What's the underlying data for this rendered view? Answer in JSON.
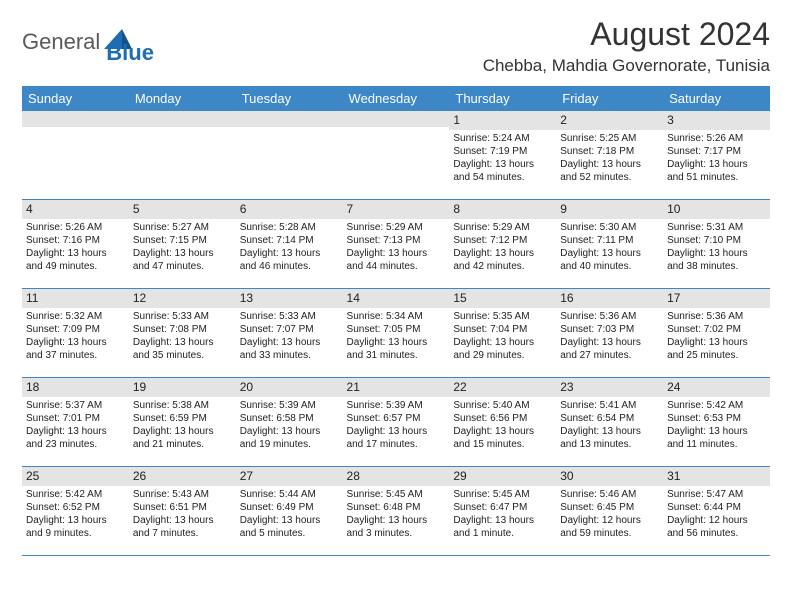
{
  "brand": {
    "general": "General",
    "blue": "Blue",
    "accent": "#1e6db2",
    "accent_dark": "#14518a"
  },
  "header": {
    "month_title": "August 2024",
    "location": "Chebba, Mahdia Governorate, Tunisia"
  },
  "colors": {
    "header_bg": "#3d87c7",
    "daynum_bg": "#e4e4e4",
    "rule": "#3d87c7"
  },
  "weekdays": [
    "Sunday",
    "Monday",
    "Tuesday",
    "Wednesday",
    "Thursday",
    "Friday",
    "Saturday"
  ],
  "calendar": {
    "first_weekday_index": 4,
    "num_days": 31,
    "days": [
      {
        "n": 1,
        "sunrise": "5:24 AM",
        "sunset": "7:19 PM",
        "daylight": "13 hours and 54 minutes."
      },
      {
        "n": 2,
        "sunrise": "5:25 AM",
        "sunset": "7:18 PM",
        "daylight": "13 hours and 52 minutes."
      },
      {
        "n": 3,
        "sunrise": "5:26 AM",
        "sunset": "7:17 PM",
        "daylight": "13 hours and 51 minutes."
      },
      {
        "n": 4,
        "sunrise": "5:26 AM",
        "sunset": "7:16 PM",
        "daylight": "13 hours and 49 minutes."
      },
      {
        "n": 5,
        "sunrise": "5:27 AM",
        "sunset": "7:15 PM",
        "daylight": "13 hours and 47 minutes."
      },
      {
        "n": 6,
        "sunrise": "5:28 AM",
        "sunset": "7:14 PM",
        "daylight": "13 hours and 46 minutes."
      },
      {
        "n": 7,
        "sunrise": "5:29 AM",
        "sunset": "7:13 PM",
        "daylight": "13 hours and 44 minutes."
      },
      {
        "n": 8,
        "sunrise": "5:29 AM",
        "sunset": "7:12 PM",
        "daylight": "13 hours and 42 minutes."
      },
      {
        "n": 9,
        "sunrise": "5:30 AM",
        "sunset": "7:11 PM",
        "daylight": "13 hours and 40 minutes."
      },
      {
        "n": 10,
        "sunrise": "5:31 AM",
        "sunset": "7:10 PM",
        "daylight": "13 hours and 38 minutes."
      },
      {
        "n": 11,
        "sunrise": "5:32 AM",
        "sunset": "7:09 PM",
        "daylight": "13 hours and 37 minutes."
      },
      {
        "n": 12,
        "sunrise": "5:33 AM",
        "sunset": "7:08 PM",
        "daylight": "13 hours and 35 minutes."
      },
      {
        "n": 13,
        "sunrise": "5:33 AM",
        "sunset": "7:07 PM",
        "daylight": "13 hours and 33 minutes."
      },
      {
        "n": 14,
        "sunrise": "5:34 AM",
        "sunset": "7:05 PM",
        "daylight": "13 hours and 31 minutes."
      },
      {
        "n": 15,
        "sunrise": "5:35 AM",
        "sunset": "7:04 PM",
        "daylight": "13 hours and 29 minutes."
      },
      {
        "n": 16,
        "sunrise": "5:36 AM",
        "sunset": "7:03 PM",
        "daylight": "13 hours and 27 minutes."
      },
      {
        "n": 17,
        "sunrise": "5:36 AM",
        "sunset": "7:02 PM",
        "daylight": "13 hours and 25 minutes."
      },
      {
        "n": 18,
        "sunrise": "5:37 AM",
        "sunset": "7:01 PM",
        "daylight": "13 hours and 23 minutes."
      },
      {
        "n": 19,
        "sunrise": "5:38 AM",
        "sunset": "6:59 PM",
        "daylight": "13 hours and 21 minutes."
      },
      {
        "n": 20,
        "sunrise": "5:39 AM",
        "sunset": "6:58 PM",
        "daylight": "13 hours and 19 minutes."
      },
      {
        "n": 21,
        "sunrise": "5:39 AM",
        "sunset": "6:57 PM",
        "daylight": "13 hours and 17 minutes."
      },
      {
        "n": 22,
        "sunrise": "5:40 AM",
        "sunset": "6:56 PM",
        "daylight": "13 hours and 15 minutes."
      },
      {
        "n": 23,
        "sunrise": "5:41 AM",
        "sunset": "6:54 PM",
        "daylight": "13 hours and 13 minutes."
      },
      {
        "n": 24,
        "sunrise": "5:42 AM",
        "sunset": "6:53 PM",
        "daylight": "13 hours and 11 minutes."
      },
      {
        "n": 25,
        "sunrise": "5:42 AM",
        "sunset": "6:52 PM",
        "daylight": "13 hours and 9 minutes."
      },
      {
        "n": 26,
        "sunrise": "5:43 AM",
        "sunset": "6:51 PM",
        "daylight": "13 hours and 7 minutes."
      },
      {
        "n": 27,
        "sunrise": "5:44 AM",
        "sunset": "6:49 PM",
        "daylight": "13 hours and 5 minutes."
      },
      {
        "n": 28,
        "sunrise": "5:45 AM",
        "sunset": "6:48 PM",
        "daylight": "13 hours and 3 minutes."
      },
      {
        "n": 29,
        "sunrise": "5:45 AM",
        "sunset": "6:47 PM",
        "daylight": "13 hours and 1 minute."
      },
      {
        "n": 30,
        "sunrise": "5:46 AM",
        "sunset": "6:45 PM",
        "daylight": "12 hours and 59 minutes."
      },
      {
        "n": 31,
        "sunrise": "5:47 AM",
        "sunset": "6:44 PM",
        "daylight": "12 hours and 56 minutes."
      }
    ]
  },
  "labels": {
    "sunrise": "Sunrise: ",
    "sunset": "Sunset: ",
    "daylight": "Daylight: "
  }
}
